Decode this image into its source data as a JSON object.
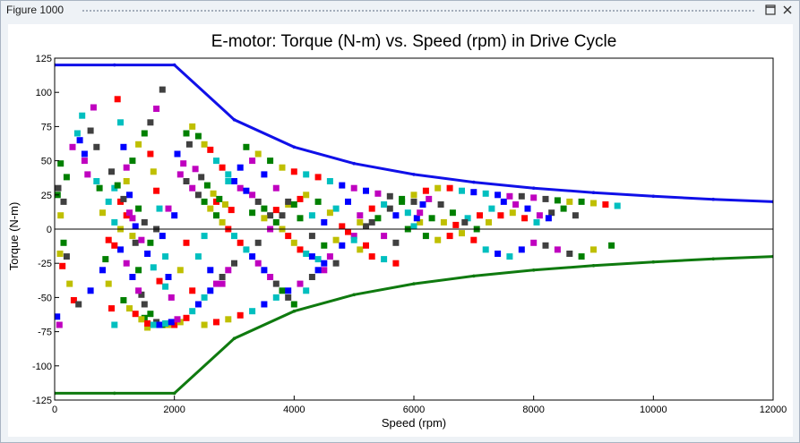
{
  "window": {
    "title": "Figure 1000"
  },
  "chart_data": {
    "type": "scatter",
    "title": "E-motor: Torque (N-m) vs. Speed (rpm) in Drive Cycle",
    "xlabel": "Speed (rpm)",
    "ylabel": "Torque (N-m)",
    "xlim": [
      0,
      12000
    ],
    "ylim": [
      -125,
      125
    ],
    "xticks": [
      0,
      2000,
      4000,
      6000,
      8000,
      10000,
      12000
    ],
    "yticks": [
      125,
      100,
      75,
      50,
      25,
      0,
      -25,
      -50,
      -75,
      -100,
      -125
    ],
    "xtick_labels": [
      "0",
      "2000",
      "4000",
      "6000",
      "8000",
      "10000",
      "12000"
    ],
    "ytick_labels": [
      "125",
      "100",
      "75",
      "50",
      "25",
      "0",
      "-25",
      "-50",
      "-75",
      "-100",
      "-125"
    ],
    "grid": false,
    "zero_line": true,
    "lines": [
      {
        "color": "#1010e8",
        "x": [
          0,
          1000,
          2000,
          3000,
          4000,
          5000,
          6000,
          7000,
          8000,
          9000,
          10000,
          11000,
          12000
        ],
        "y": [
          120,
          120,
          120,
          80,
          60,
          48,
          40,
          34.3,
          30,
          26.7,
          24,
          21.8,
          20
        ]
      },
      {
        "color": "#0f7a0f",
        "x": [
          0,
          1000,
          2000,
          3000,
          4000,
          5000,
          6000,
          7000,
          8000,
          9000,
          10000,
          11000,
          12000
        ],
        "y": [
          -120,
          -120,
          -120,
          -80,
          -60,
          -48,
          -40,
          -34.3,
          -30,
          -26.7,
          -24,
          -21.8,
          -20
        ]
      }
    ],
    "scatter_colors": [
      "#0000ff",
      "#ff0000",
      "#008000",
      "#bf00bf",
      "#00bfbf",
      "#bfbf00",
      "#404040"
    ],
    "scatter": [
      [
        40,
        -64
      ],
      [
        80,
        -70
      ],
      [
        60,
        30
      ],
      [
        100,
        48
      ],
      [
        150,
        20
      ],
      [
        200,
        38
      ],
      [
        90,
        -18
      ],
      [
        130,
        -27
      ],
      [
        250,
        -40
      ],
      [
        320,
        -52
      ],
      [
        380,
        70
      ],
      [
        420,
        65
      ],
      [
        460,
        83
      ],
      [
        500,
        55
      ],
      [
        550,
        40
      ],
      [
        600,
        72
      ],
      [
        650,
        89
      ],
      [
        700,
        60
      ],
      [
        750,
        30
      ],
      [
        800,
        12
      ],
      [
        850,
        -22
      ],
      [
        900,
        -40
      ],
      [
        950,
        -58
      ],
      [
        1000,
        -70
      ],
      [
        1050,
        95
      ],
      [
        1100,
        78
      ],
      [
        1150,
        60
      ],
      [
        1200,
        45
      ],
      [
        1250,
        25
      ],
      [
        1300,
        8
      ],
      [
        1350,
        -10
      ],
      [
        1400,
        -30
      ],
      [
        1450,
        -48
      ],
      [
        1500,
        -65
      ],
      [
        1550,
        -72
      ],
      [
        1600,
        55
      ],
      [
        1650,
        42
      ],
      [
        1700,
        28
      ],
      [
        1750,
        15
      ],
      [
        1800,
        -5
      ],
      [
        1850,
        -20
      ],
      [
        1900,
        -35
      ],
      [
        1950,
        -50
      ],
      [
        1800,
        102
      ],
      [
        1700,
        88
      ],
      [
        1600,
        78
      ],
      [
        1500,
        70
      ],
      [
        1400,
        62
      ],
      [
        1300,
        50
      ],
      [
        1200,
        35
      ],
      [
        1100,
        20
      ],
      [
        1000,
        5
      ],
      [
        900,
        -8
      ],
      [
        1000,
        30
      ],
      [
        1100,
        -15
      ],
      [
        1200,
        -25
      ],
      [
        1300,
        -35
      ],
      [
        1400,
        -45
      ],
      [
        1500,
        -55
      ],
      [
        1600,
        -62
      ],
      [
        1700,
        -68
      ],
      [
        1800,
        -70
      ],
      [
        1900,
        -70
      ],
      [
        2000,
        -70
      ],
      [
        2100,
        -68
      ],
      [
        2200,
        -65
      ],
      [
        2300,
        -60
      ],
      [
        2400,
        -55
      ],
      [
        2500,
        -50
      ],
      [
        2600,
        -45
      ],
      [
        2700,
        -40
      ],
      [
        2800,
        -35
      ],
      [
        2900,
        -30
      ],
      [
        3000,
        -25
      ],
      [
        2200,
        70
      ],
      [
        2300,
        75
      ],
      [
        2400,
        68
      ],
      [
        2500,
        62
      ],
      [
        2600,
        58
      ],
      [
        2700,
        50
      ],
      [
        2800,
        45
      ],
      [
        2900,
        40
      ],
      [
        3000,
        35
      ],
      [
        3100,
        30
      ],
      [
        3200,
        28
      ],
      [
        3300,
        25
      ],
      [
        3400,
        20
      ],
      [
        3500,
        15
      ],
      [
        3600,
        10
      ],
      [
        3700,
        5
      ],
      [
        3800,
        0
      ],
      [
        3900,
        -5
      ],
      [
        4000,
        -10
      ],
      [
        4100,
        -15
      ],
      [
        4200,
        -18
      ],
      [
        4300,
        -20
      ],
      [
        4400,
        -22
      ],
      [
        4500,
        -25
      ],
      [
        2100,
        40
      ],
      [
        2200,
        35
      ],
      [
        2300,
        30
      ],
      [
        2400,
        25
      ],
      [
        2500,
        20
      ],
      [
        2600,
        15
      ],
      [
        2700,
        10
      ],
      [
        2800,
        5
      ],
      [
        2900,
        0
      ],
      [
        3000,
        -5
      ],
      [
        3100,
        -10
      ],
      [
        3200,
        -15
      ],
      [
        3300,
        -20
      ],
      [
        3400,
        -25
      ],
      [
        3500,
        -30
      ],
      [
        3600,
        -35
      ],
      [
        3700,
        -40
      ],
      [
        3800,
        -45
      ],
      [
        3900,
        -50
      ],
      [
        4000,
        -55
      ],
      [
        2500,
        -70
      ],
      [
        2700,
        -68
      ],
      [
        2900,
        -66
      ],
      [
        3100,
        -63
      ],
      [
        3300,
        -60
      ],
      [
        3500,
        -55
      ],
      [
        3700,
        -50
      ],
      [
        3900,
        -45
      ],
      [
        4100,
        -40
      ],
      [
        4300,
        -35
      ],
      [
        4500,
        -30
      ],
      [
        4700,
        -25
      ],
      [
        3200,
        60
      ],
      [
        3400,
        55
      ],
      [
        3600,
        50
      ],
      [
        3800,
        45
      ],
      [
        4000,
        42
      ],
      [
        4200,
        40
      ],
      [
        4400,
        38
      ],
      [
        4600,
        35
      ],
      [
        4800,
        32
      ],
      [
        5000,
        30
      ],
      [
        5200,
        28
      ],
      [
        5400,
        26
      ],
      [
        5600,
        24
      ],
      [
        5800,
        22
      ],
      [
        6000,
        20
      ],
      [
        3300,
        12
      ],
      [
        3500,
        8
      ],
      [
        3700,
        14
      ],
      [
        3900,
        18
      ],
      [
        4100,
        22
      ],
      [
        4300,
        10
      ],
      [
        4500,
        5
      ],
      [
        4700,
        15
      ],
      [
        4900,
        20
      ],
      [
        5100,
        10
      ],
      [
        5300,
        5
      ],
      [
        5500,
        -5
      ],
      [
        5700,
        -10
      ],
      [
        5900,
        0
      ],
      [
        6100,
        5
      ],
      [
        6300,
        8
      ],
      [
        6500,
        5
      ],
      [
        6700,
        3
      ],
      [
        6900,
        8
      ],
      [
        7100,
        10
      ],
      [
        7300,
        15
      ],
      [
        7500,
        20
      ],
      [
        7700,
        18
      ],
      [
        7900,
        15
      ],
      [
        8100,
        10
      ],
      [
        8300,
        12
      ],
      [
        8500,
        15
      ],
      [
        8700,
        10
      ],
      [
        6200,
        -5
      ],
      [
        6400,
        -8
      ],
      [
        6600,
        -5
      ],
      [
        6800,
        -3
      ],
      [
        7000,
        -8
      ],
      [
        7200,
        -15
      ],
      [
        7400,
        -18
      ],
      [
        7600,
        -20
      ],
      [
        7800,
        -15
      ],
      [
        8000,
        -10
      ],
      [
        8200,
        -12
      ],
      [
        8400,
        -15
      ],
      [
        8600,
        -18
      ],
      [
        8800,
        -20
      ],
      [
        9000,
        -15
      ],
      [
        9300,
        -12
      ],
      [
        5100,
        -15
      ],
      [
        5300,
        -20
      ],
      [
        5500,
        -22
      ],
      [
        5700,
        -25
      ],
      [
        4200,
        -45
      ],
      [
        4400,
        -30
      ],
      [
        4600,
        -20
      ],
      [
        4800,
        -12
      ],
      [
        5000,
        -5
      ],
      [
        5200,
        2
      ],
      [
        5400,
        8
      ],
      [
        5600,
        15
      ],
      [
        5800,
        20
      ],
      [
        6000,
        25
      ],
      [
        6200,
        28
      ],
      [
        6400,
        30
      ],
      [
        6600,
        30
      ],
      [
        6800,
        28
      ],
      [
        7000,
        27
      ],
      [
        7200,
        26
      ],
      [
        7400,
        25
      ],
      [
        7600,
        24
      ],
      [
        7800,
        24
      ],
      [
        8000,
        23
      ],
      [
        8200,
        22
      ],
      [
        8400,
        21
      ],
      [
        8600,
        20
      ],
      [
        8800,
        20
      ],
      [
        9000,
        19
      ],
      [
        9200,
        18
      ],
      [
        9400,
        17
      ],
      [
        2200,
        -10
      ],
      [
        2400,
        -20
      ],
      [
        2600,
        -30
      ],
      [
        2800,
        -40
      ],
      [
        2000,
        10
      ],
      [
        1900,
        15
      ],
      [
        1700,
        0
      ],
      [
        1600,
        -10
      ],
      [
        1500,
        5
      ],
      [
        1400,
        15
      ],
      [
        1300,
        -5
      ],
      [
        1200,
        10
      ],
      [
        1100,
        0
      ],
      [
        1000,
        -12
      ],
      [
        900,
        20
      ],
      [
        800,
        -30
      ],
      [
        700,
        35
      ],
      [
        600,
        -45
      ],
      [
        500,
        50
      ],
      [
        400,
        -55
      ],
      [
        300,
        60
      ],
      [
        200,
        -20
      ],
      [
        150,
        -10
      ],
      [
        100,
        10
      ],
      [
        50,
        25
      ],
      [
        2100,
        -30
      ],
      [
        2300,
        -45
      ],
      [
        2500,
        -5
      ],
      [
        2700,
        20
      ],
      [
        2900,
        35
      ],
      [
        3100,
        45
      ],
      [
        3300,
        50
      ],
      [
        3500,
        40
      ],
      [
        3700,
        30
      ],
      [
        3900,
        20
      ],
      [
        4100,
        8
      ],
      [
        4300,
        -5
      ],
      [
        4500,
        -12
      ],
      [
        4700,
        -8
      ],
      [
        4900,
        -2
      ],
      [
        5100,
        5
      ],
      [
        5300,
        15
      ],
      [
        5500,
        18
      ],
      [
        5700,
        10
      ],
      [
        5900,
        12
      ],
      [
        2050,
        55
      ],
      [
        2150,
        48
      ],
      [
        2250,
        62
      ],
      [
        2350,
        44
      ],
      [
        2450,
        38
      ],
      [
        2550,
        32
      ],
      [
        2650,
        26
      ],
      [
        2750,
        22
      ],
      [
        2850,
        18
      ],
      [
        2950,
        14
      ],
      [
        1850,
        -42
      ],
      [
        1750,
        -38
      ],
      [
        1650,
        -28
      ],
      [
        1550,
        -18
      ],
      [
        1450,
        -8
      ],
      [
        1350,
        2
      ],
      [
        1250,
        12
      ],
      [
        1150,
        22
      ],
      [
        1050,
        32
      ],
      [
        950,
        42
      ],
      [
        1150,
        -52
      ],
      [
        1250,
        -58
      ],
      [
        1350,
        -62
      ],
      [
        1450,
        -66
      ],
      [
        1550,
        -69
      ],
      [
        1650,
        -70
      ],
      [
        1750,
        -70
      ],
      [
        1850,
        -69
      ],
      [
        1950,
        -68
      ],
      [
        2050,
        -66
      ],
      [
        3400,
        -10
      ],
      [
        3600,
        0
      ],
      [
        3800,
        10
      ],
      [
        4000,
        18
      ],
      [
        4200,
        25
      ],
      [
        4400,
        20
      ],
      [
        4600,
        12
      ],
      [
        4800,
        2
      ],
      [
        5000,
        -8
      ],
      [
        5200,
        -12
      ],
      [
        6000,
        2
      ],
      [
        6050,
        8
      ],
      [
        6100,
        12
      ],
      [
        6150,
        18
      ],
      [
        6250,
        22
      ],
      [
        6450,
        18
      ],
      [
        6650,
        12
      ],
      [
        6850,
        5
      ],
      [
        7050,
        0
      ],
      [
        7250,
        5
      ],
      [
        7450,
        10
      ],
      [
        7650,
        12
      ],
      [
        7850,
        8
      ],
      [
        8050,
        5
      ],
      [
        8250,
        8
      ]
    ]
  }
}
